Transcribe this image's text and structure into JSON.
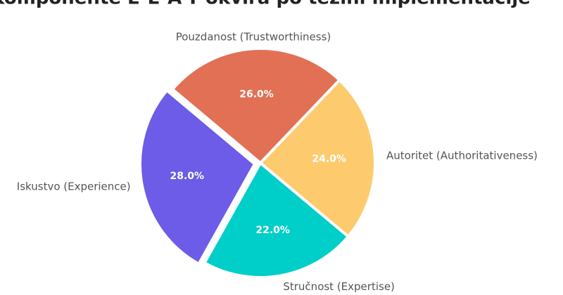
{
  "chart_data": {
    "type": "pie",
    "title": "Komponente E-E-A-T okvira po težini implementacije",
    "categories": [
      "Iskustvo (Experience)",
      "Stručnost (Expertise)",
      "Autoritet (Authoritativeness)",
      "Pouzdanost (Trustworthiness)"
    ],
    "values": [
      28,
      22,
      24,
      26
    ],
    "value_labels": [
      "28.0%",
      "22.0%",
      "24.0%",
      "26.0%"
    ],
    "colors": [
      "#6c5ce7",
      "#00cec9",
      "#fdcb6e",
      "#e17055"
    ],
    "start_angle": 140,
    "explode": [
      0.05,
      0,
      0,
      0
    ]
  }
}
